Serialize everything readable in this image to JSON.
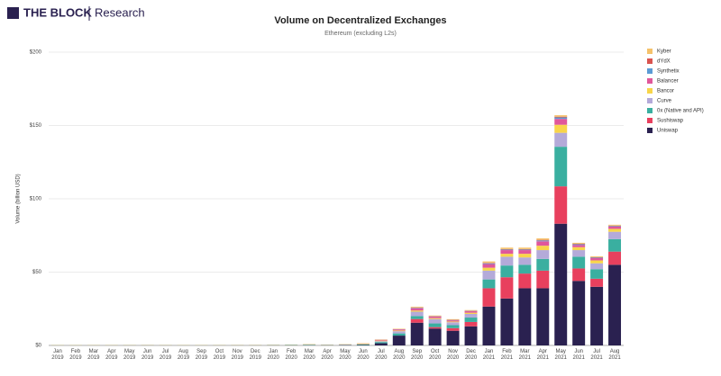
{
  "header": {
    "brand": "THE BLOCK",
    "section": "Research"
  },
  "chart_data": {
    "type": "bar",
    "stacked": true,
    "title": "Volume on Decentralized Exchanges",
    "subtitle": "Ethereum (excluding L2s)",
    "y_label": "Volume (billion USD)",
    "categories": [
      "Jan 2019",
      "Feb 2019",
      "Mar 2019",
      "Apr 2019",
      "May 2019",
      "Jun 2019",
      "Jul 2019",
      "Aug 2019",
      "Sep 2019",
      "Oct 2019",
      "Nov 2019",
      "Dec 2019",
      "Jan 2020",
      "Feb 2020",
      "Mar 2020",
      "Apr 2020",
      "May 2020",
      "Jun 2020",
      "Jul 2020",
      "Aug 2020",
      "Sep 2020",
      "Oct 2020",
      "Nov 2020",
      "Dec 2020",
      "Jan 2021",
      "Feb 2021",
      "Mar 2021",
      "Apr 2021",
      "May 2021",
      "Jun 2021",
      "Jul 2021",
      "Aug 2021"
    ],
    "ylim": [
      0,
      200
    ],
    "yticks": [
      {
        "value": 0,
        "label": "$0"
      },
      {
        "value": 50,
        "label": "$50"
      },
      {
        "value": 100,
        "label": "$100"
      },
      {
        "value": 150,
        "label": "$150"
      },
      {
        "value": 200,
        "label": "$200"
      }
    ],
    "grid": true,
    "legend": "right",
    "series": [
      {
        "name": "Uniswap",
        "color": "#2a2150",
        "values": [
          0.02,
          0.02,
          0.03,
          0.03,
          0.05,
          0.06,
          0.05,
          0.04,
          0.04,
          0.05,
          0.06,
          0.07,
          0.07,
          0.1,
          0.15,
          0.1,
          0.2,
          0.3,
          1.5,
          6.7,
          15.5,
          11.5,
          10,
          13,
          26.5,
          32,
          39,
          39,
          83,
          44,
          40,
          55
        ]
      },
      {
        "name": "Sushiswap",
        "color": "#e8405e",
        "values": [
          0,
          0,
          0,
          0,
          0,
          0,
          0,
          0,
          0,
          0,
          0,
          0,
          0,
          0,
          0,
          0,
          0,
          0,
          0,
          0,
          2.5,
          1,
          1.8,
          3,
          12.5,
          14.5,
          10,
          12,
          25.5,
          8.5,
          5.5,
          9
        ]
      },
      {
        "name": "0x (Native and API)",
        "color": "#3aafa0",
        "values": [
          0.1,
          0.1,
          0.1,
          0.1,
          0.1,
          0.1,
          0.1,
          0.1,
          0.1,
          0.1,
          0.1,
          0.1,
          0.15,
          0.2,
          0.3,
          0.15,
          0.2,
          0.4,
          0.8,
          1.5,
          2,
          2.5,
          2,
          3,
          6,
          8,
          6,
          8,
          27,
          8,
          6.5,
          8.5
        ]
      },
      {
        "name": "Curve",
        "color": "#b4aad9",
        "values": [
          0,
          0,
          0,
          0,
          0,
          0,
          0,
          0,
          0,
          0,
          0,
          0,
          0.02,
          0.05,
          0.1,
          0.05,
          0.1,
          0.2,
          0.6,
          1.5,
          3,
          3,
          2,
          2.5,
          6,
          6,
          5,
          6,
          9.5,
          4.5,
          4,
          5
        ]
      },
      {
        "name": "Bancor",
        "color": "#f8d54a",
        "values": [
          0.05,
          0.05,
          0.05,
          0.05,
          0.05,
          0.05,
          0.05,
          0.05,
          0.05,
          0.05,
          0.05,
          0.05,
          0.05,
          0.05,
          0.1,
          0.05,
          0.05,
          0.3,
          0.4,
          0.5,
          0.8,
          0.6,
          0.5,
          0.8,
          2,
          2,
          2.5,
          3,
          5.5,
          2,
          2,
          2
        ]
      },
      {
        "name": "Balancer",
        "color": "#e0579b",
        "values": [
          0,
          0,
          0,
          0,
          0,
          0,
          0,
          0,
          0,
          0,
          0,
          0,
          0,
          0,
          0.02,
          0.03,
          0.05,
          0.1,
          0.5,
          0.7,
          1.5,
          1,
          0.8,
          1,
          2.5,
          2.5,
          2.5,
          3,
          4,
          1.5,
          1.5,
          1.5
        ]
      },
      {
        "name": "Synthetix",
        "color": "#5b9bd5",
        "values": [
          0,
          0,
          0,
          0,
          0,
          0,
          0,
          0,
          0,
          0,
          0,
          0,
          0,
          0,
          0,
          0,
          0,
          0,
          0.05,
          0.1,
          0.3,
          0.2,
          0.2,
          0.2,
          0.5,
          0.4,
          0.4,
          0.6,
          1,
          0.5,
          0.4,
          0.4
        ]
      },
      {
        "name": "dYdX",
        "color": "#d9534f",
        "values": [
          0.02,
          0.02,
          0.02,
          0.02,
          0.02,
          0.02,
          0.02,
          0.02,
          0.02,
          0.02,
          0.02,
          0.02,
          0.02,
          0.02,
          0.03,
          0.02,
          0.02,
          0.03,
          0.05,
          0.1,
          0.3,
          0.2,
          0.2,
          0.2,
          0.3,
          0.3,
          0.3,
          0.4,
          0.5,
          0.3,
          0.3,
          0.3
        ]
      },
      {
        "name": "Kyber",
        "color": "#f5c26b",
        "values": [
          0.1,
          0.1,
          0.1,
          0.1,
          0.1,
          0.1,
          0.1,
          0.1,
          0.1,
          0.1,
          0.1,
          0.1,
          0.1,
          0.15,
          0.2,
          0.15,
          0.2,
          0.2,
          0.2,
          0.3,
          0.5,
          0.4,
          0.4,
          0.4,
          1,
          1,
          1,
          1,
          1,
          0.7,
          0.6,
          0.6
        ]
      }
    ]
  }
}
